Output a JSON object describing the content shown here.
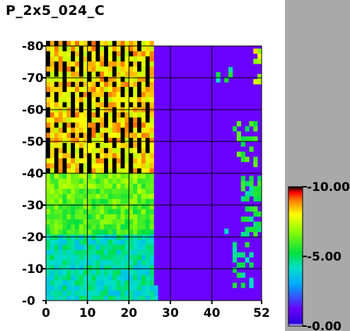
{
  "title": "P_2x5_024_C",
  "chart_data": {
    "type": "heatmap",
    "title": "P_2x5_024_C",
    "xlim": [
      0,
      52
    ],
    "ylim": [
      0,
      80
    ],
    "x_ticks": [
      "0",
      "10",
      "20",
      "30",
      "40",
      "52"
    ],
    "y_ticks": [
      "0",
      "10",
      "20",
      "30",
      "40",
      "50",
      "60",
      "70",
      "80"
    ],
    "grid": true,
    "background_value": 0.5,
    "colorbar": {
      "min": 0,
      "max": 10,
      "labels": [
        "10.00",
        "5.00",
        "0.00"
      ],
      "position": "right"
    },
    "main_block": {
      "x_range": [
        0,
        27
      ],
      "y_range": [
        0,
        80
      ],
      "description_values": {
        "bottom_rows_0_20": 4.3,
        "middle_rows_20_40": 5.8,
        "top_rows_40_80": 8.2,
        "dark_stripe_value": 10
      }
    },
    "right_clusters": [
      {
        "x": [
          41,
          45
        ],
        "y": [
          67,
          72
        ],
        "value": 4.8
      },
      {
        "x": [
          45,
          51
        ],
        "y": [
          42,
          56
        ],
        "value": 5.8
      },
      {
        "x": [
          47,
          52
        ],
        "y": [
          20,
          38
        ],
        "value": 5.2
      },
      {
        "x": [
          45,
          50
        ],
        "y": [
          4,
          18
        ],
        "value": 5.0
      },
      {
        "x": [
          50,
          52
        ],
        "y": [
          68,
          80
        ],
        "value": 7.5
      },
      {
        "x": [
          43,
          44
        ],
        "y": [
          21,
          23
        ],
        "value": 3.5
      }
    ]
  }
}
